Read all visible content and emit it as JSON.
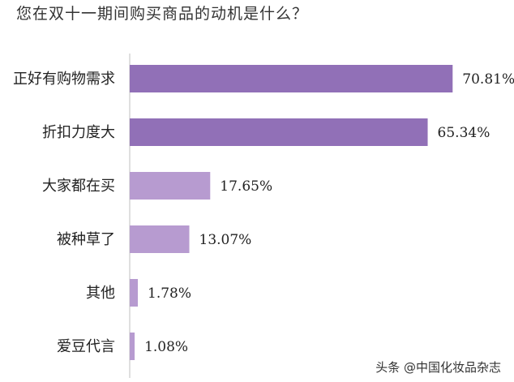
{
  "chart_data": {
    "type": "bar",
    "orientation": "horizontal",
    "title": "您在双十一期间购买商品的动机是什么？",
    "categories": [
      "正好有购物需求",
      "折扣力度大",
      "大家都在买",
      "被种草了",
      "其他",
      "爱豆代言"
    ],
    "values": [
      70.81,
      65.34,
      17.65,
      13.07,
      1.78,
      1.08
    ],
    "value_labels": [
      "70.81%",
      "65.34%",
      "17.65%",
      "13.07%",
      "1.78%",
      "1.08%"
    ],
    "unit": "%",
    "xlim": [
      0,
      72
    ],
    "colors": [
      "#9170b7",
      "#9170b7",
      "#b79bd0",
      "#b79bd0",
      "#b79bd0",
      "#b79bd0"
    ],
    "grid": false,
    "legend": "none"
  },
  "watermark": {
    "text": "头条 @中国化妆品杂志"
  }
}
